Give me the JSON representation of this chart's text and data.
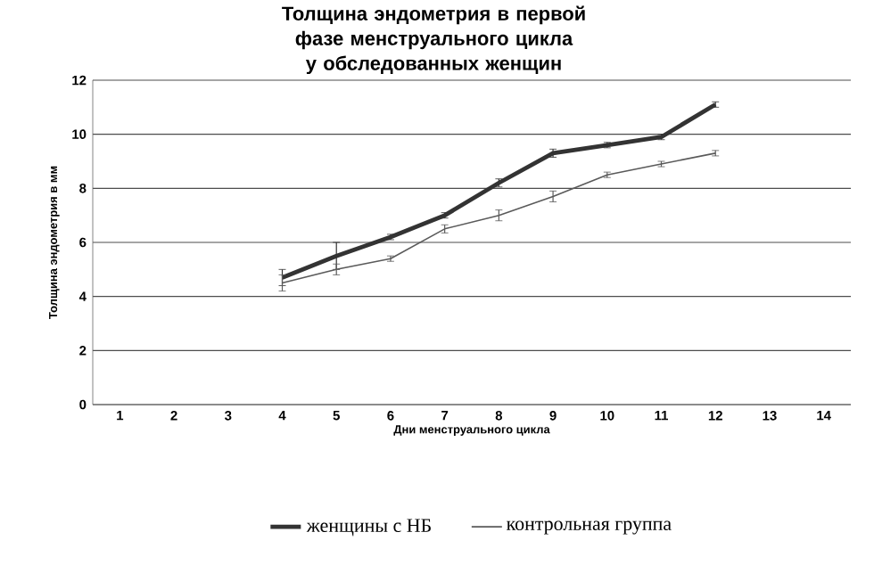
{
  "chart_data": {
    "type": "line",
    "title": "Толщина эндометрия в первой фазе менструального цикла у обследованных женщин",
    "xlabel": "Дни менструального  цикла",
    "ylabel": "Толщина эндометрия в мм",
    "categories": [
      "1",
      "2",
      "3",
      "4",
      "5",
      "6",
      "7",
      "8",
      "9",
      "10",
      "11",
      "12",
      "13",
      "14"
    ],
    "series": [
      {
        "name": "женщины с НБ",
        "color": "#333333",
        "values": [
          null,
          null,
          null,
          4.7,
          5.5,
          6.2,
          7.0,
          8.2,
          9.3,
          9.6,
          9.9,
          11.1,
          null,
          null
        ],
        "errors": [
          null,
          null,
          null,
          0.3,
          0.5,
          0.1,
          0.1,
          0.15,
          0.15,
          0.1,
          0.1,
          0.1,
          null,
          null
        ]
      },
      {
        "name": "контрольная группа",
        "color": "#5a5a5a",
        "values": [
          null,
          null,
          null,
          4.5,
          5.0,
          5.4,
          6.5,
          7.0,
          7.7,
          8.5,
          8.9,
          9.3,
          null,
          null
        ],
        "errors": [
          null,
          null,
          null,
          0.3,
          0.2,
          0.1,
          0.15,
          0.2,
          0.2,
          0.1,
          0.1,
          0.1,
          null,
          null
        ]
      }
    ],
    "ylim": [
      0,
      12
    ],
    "yticks": [
      0,
      2,
      4,
      6,
      8,
      10,
      12
    ],
    "grid": "y",
    "legend": "bottom",
    "marker": "none",
    "line_style": "solid"
  }
}
